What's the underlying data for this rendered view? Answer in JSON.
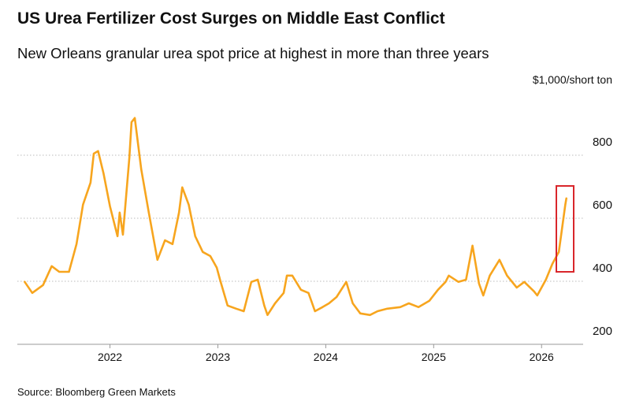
{
  "chart_data": {
    "type": "line",
    "title": "US Urea Fertilizer Cost Surges on Middle East Conflict",
    "subtitle": "New Orleans granular urea spot price at highest in more than three years",
    "y_axis_label": "$1,000/short ton",
    "source": "Source: Bloomberg Green Markets",
    "x": [
      2021.21,
      2021.28,
      2021.38,
      2021.46,
      2021.53,
      2021.62,
      2021.69,
      2021.75,
      2021.82,
      2021.85,
      2021.89,
      2021.94,
      2022.0,
      2022.07,
      2022.09,
      2022.12,
      2022.18,
      2022.2,
      2022.23,
      2022.29,
      2022.36,
      2022.44,
      2022.51,
      2022.58,
      2022.64,
      2022.67,
      2022.73,
      2022.79,
      2022.86,
      2022.93,
      2022.99,
      2023.02,
      2023.09,
      2023.17,
      2023.24,
      2023.31,
      2023.37,
      2023.43,
      2023.46,
      2023.53,
      2023.61,
      2023.64,
      2023.69,
      2023.77,
      2023.84,
      2023.9,
      2023.97,
      2024.03,
      2024.1,
      2024.19,
      2024.25,
      2024.32,
      2024.41,
      2024.48,
      2024.57,
      2024.69,
      2024.77,
      2024.86,
      2024.96,
      2025.04,
      2025.11,
      2025.14,
      2025.23,
      2025.3,
      2025.36,
      2025.42,
      2025.46,
      2025.52,
      2025.61,
      2025.68,
      2025.77,
      2025.84,
      2025.93,
      2025.96,
      2026.04,
      2026.1,
      2026.16,
      2026.19,
      2026.22,
      2026.23
    ],
    "series": [
      {
        "name": "New Orleans granular urea",
        "color": "#f7a51e",
        "values": [
          398,
          363,
          388,
          448,
          430,
          430,
          518,
          643,
          713,
          805,
          813,
          743,
          638,
          543,
          618,
          548,
          793,
          905,
          918,
          755,
          618,
          468,
          530,
          518,
          618,
          698,
          643,
          543,
          493,
          480,
          443,
          405,
          323,
          313,
          305,
          398,
          405,
          323,
          293,
          330,
          363,
          418,
          418,
          373,
          363,
          305,
          318,
          330,
          350,
          398,
          330,
          298,
          293,
          305,
          313,
          318,
          330,
          318,
          338,
          373,
          398,
          418,
          398,
          405,
          513,
          393,
          355,
          418,
          468,
          418,
          380,
          398,
          368,
          355,
          405,
          455,
          493,
          568,
          643,
          663
        ]
      }
    ],
    "xlim": [
      2021.2,
      2026.4
    ],
    "xticks": [
      2022,
      2023,
      2024,
      2025,
      2026
    ],
    "ylim": [
      200,
      950
    ],
    "yticks": [
      200,
      400,
      600,
      800
    ],
    "grid": true
  }
}
